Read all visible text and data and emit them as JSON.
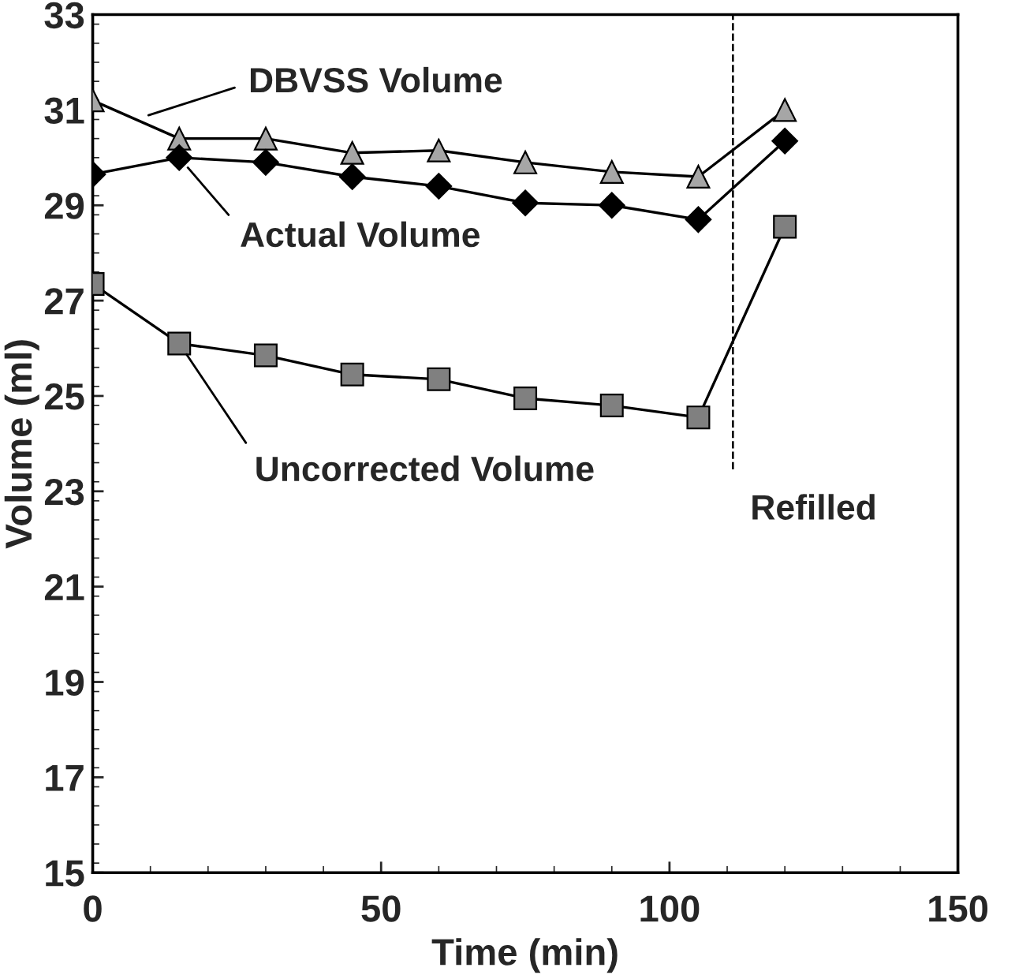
{
  "chart_data": {
    "type": "line",
    "xlabel": "Time (min)",
    "ylabel": "Volume (ml)",
    "x": [
      0,
      15,
      30,
      45,
      60,
      75,
      90,
      105,
      120
    ],
    "series": [
      {
        "color": "#a6a6a6",
        "marker": "triangle",
        "values": [
          31.2,
          30.4,
          30.4,
          30.1,
          30.15,
          29.9,
          29.7,
          29.6,
          31.0
        ]
      },
      {
        "color": "#000000",
        "marker": "diamond",
        "values": [
          29.65,
          30.0,
          29.9,
          29.6,
          29.4,
          29.05,
          29.0,
          28.7,
          30.35
        ]
      },
      {
        "color": "#808080",
        "marker": "square",
        "values": [
          27.35,
          26.1,
          25.85,
          25.45,
          25.35,
          24.95,
          24.8,
          24.55,
          28.55
        ]
      }
    ],
    "xlim": [
      0,
      150
    ],
    "xticks": [
      0,
      50,
      100,
      150
    ],
    "ylim": [
      15,
      33
    ],
    "yticks": [
      15,
      17,
      19,
      21,
      23,
      25,
      27,
      29,
      31,
      33
    ],
    "ref_lines": [
      {
        "axis": "x",
        "value": 111,
        "label": "Refilled",
        "line_style": "dashed",
        "color": "#000000"
      }
    ],
    "annotations": [
      "DBVSS Volume",
      {
        "text": "Actual Volume",
        "x": 15,
        "y": 30.0
      },
      {
        "text": "Uncorrected Volume",
        "x": 15,
        "y": 26.1
      }
    ],
    "grid": false,
    "legend": false,
    "line_style": "solid"
  }
}
